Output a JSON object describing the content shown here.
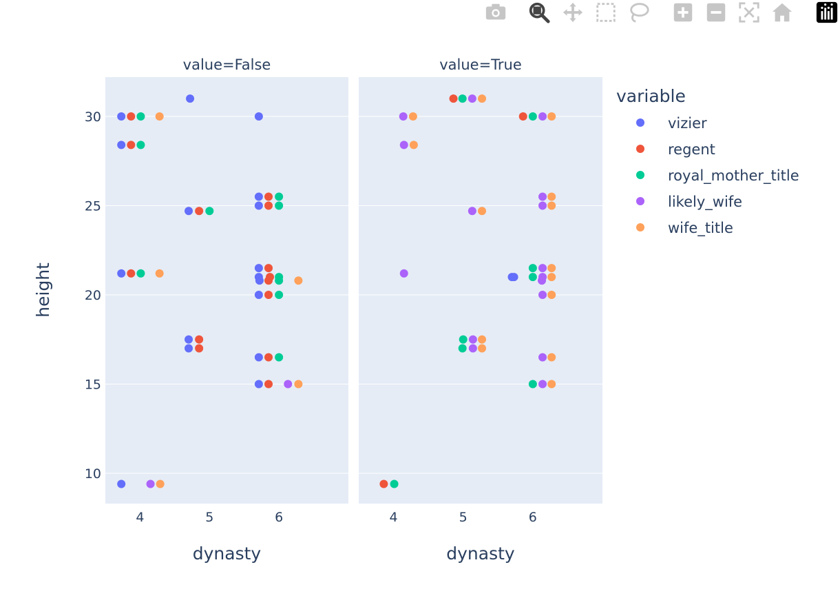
{
  "toolbar": {
    "buttons": [
      {
        "name": "camera-icon",
        "tooltip": ""
      },
      {
        "name": "zoom-icon",
        "tooltip": ""
      },
      {
        "name": "pan-icon",
        "tooltip": ""
      },
      {
        "name": "box-select-icon",
        "tooltip": ""
      },
      {
        "name": "lasso-select-icon",
        "tooltip": ""
      },
      {
        "name": "zoom-in-icon",
        "tooltip": ""
      },
      {
        "name": "zoom-out-icon",
        "tooltip": ""
      },
      {
        "name": "autoscale-icon",
        "tooltip": ""
      },
      {
        "name": "reset-axes-icon",
        "tooltip": ""
      },
      {
        "name": "plotly-logo-icon",
        "tooltip": ""
      }
    ],
    "active_color": "#444444",
    "inactive_color": "#c6c6c6"
  },
  "colors": {
    "plot_bg": "#e5ecf6",
    "grid": "#ffffff",
    "text": "#2a3f5f"
  },
  "chart_data": {
    "type": "scatter",
    "facet_by": "value",
    "facets": [
      {
        "title": "value=False",
        "xlabel": "dynasty"
      },
      {
        "title": "value=True",
        "xlabel": "dynasty"
      }
    ],
    "ylabel": "height",
    "xlim": [
      3.5,
      7.0
    ],
    "ylim": [
      8.3,
      32.2
    ],
    "xticks": [
      4,
      5,
      6
    ],
    "yticks": [
      10,
      15,
      20,
      25,
      30
    ],
    "legend": {
      "title": "variable",
      "position": "right"
    },
    "series": [
      {
        "name": "vizier",
        "color": "#636efa",
        "points": {
          "False": [
            [
              3.73,
              30
            ],
            [
              3.73,
              28.4
            ],
            [
              3.73,
              21.2
            ],
            [
              3.73,
              9.4
            ],
            [
              4.72,
              31
            ],
            [
              4.7,
              24.7
            ],
            [
              4.7,
              17.5
            ],
            [
              4.7,
              17
            ],
            [
              5.71,
              30
            ],
            [
              5.71,
              25.5
            ],
            [
              5.71,
              25
            ],
            [
              5.71,
              21.5
            ],
            [
              5.71,
              21
            ],
            [
              5.72,
              20.8
            ],
            [
              5.71,
              20
            ],
            [
              5.71,
              16.5
            ],
            [
              5.71,
              15
            ]
          ],
          "True": [
            [
              5.7,
              21
            ],
            [
              5.73,
              21
            ]
          ]
        }
      },
      {
        "name": "regent",
        "color": "#ef553b",
        "points": {
          "False": [
            [
              3.87,
              30
            ],
            [
              3.87,
              28.4
            ],
            [
              3.87,
              21.2
            ],
            [
              4.85,
              24.7
            ],
            [
              4.85,
              17.5
            ],
            [
              4.85,
              17
            ],
            [
              5.85,
              25.5
            ],
            [
              5.85,
              25
            ],
            [
              5.85,
              21.5
            ],
            [
              5.87,
              21
            ],
            [
              5.85,
              20.8
            ],
            [
              5.85,
              20
            ],
            [
              5.85,
              16.5
            ],
            [
              5.85,
              15
            ]
          ],
          "True": [
            [
              3.86,
              9.4
            ],
            [
              4.86,
              31
            ],
            [
              5.86,
              30
            ]
          ]
        }
      },
      {
        "name": "royal_mother_title",
        "color": "#00cc96",
        "points": {
          "False": [
            [
              4.01,
              30
            ],
            [
              4.01,
              28.4
            ],
            [
              4.01,
              21.2
            ],
            [
              5.0,
              24.7
            ],
            [
              6.0,
              25.5
            ],
            [
              6.0,
              25
            ],
            [
              6.0,
              21
            ],
            [
              6.0,
              20.8
            ],
            [
              6.0,
              20
            ],
            [
              6.0,
              16.5
            ]
          ],
          "True": [
            [
              4.01,
              9.4
            ],
            [
              4.99,
              31
            ],
            [
              5.0,
              17.5
            ],
            [
              4.99,
              17
            ],
            [
              6.0,
              30
            ],
            [
              6.0,
              21.5
            ],
            [
              6.0,
              21
            ],
            [
              6.0,
              15
            ]
          ]
        }
      },
      {
        "name": "likely_wife",
        "color": "#ab63fa",
        "points": {
          "False": [
            [
              4.15,
              9.4
            ],
            [
              6.13,
              15
            ]
          ],
          "True": [
            [
              4.14,
              30
            ],
            [
              4.15,
              28.4
            ],
            [
              4.15,
              21.2
            ],
            [
              5.13,
              31
            ],
            [
              5.13,
              24.7
            ],
            [
              5.14,
              17.5
            ],
            [
              5.14,
              17
            ],
            [
              6.14,
              30
            ],
            [
              6.14,
              25.5
            ],
            [
              6.14,
              25
            ],
            [
              6.14,
              21.5
            ],
            [
              6.14,
              21
            ],
            [
              6.13,
              20.8
            ],
            [
              6.14,
              20
            ],
            [
              6.14,
              16.5
            ],
            [
              6.14,
              15
            ]
          ]
        }
      },
      {
        "name": "wife_title",
        "color": "#ffa15a",
        "points": {
          "False": [
            [
              4.28,
              30
            ],
            [
              4.28,
              21.2
            ],
            [
              4.29,
              9.4
            ],
            [
              6.28,
              20.8
            ],
            [
              6.28,
              15
            ]
          ],
          "True": [
            [
              4.28,
              30
            ],
            [
              4.29,
              28.4
            ],
            [
              5.27,
              31
            ],
            [
              5.27,
              24.7
            ],
            [
              5.27,
              17.5
            ],
            [
              5.27,
              17
            ],
            [
              6.27,
              30
            ],
            [
              6.27,
              25.5
            ],
            [
              6.27,
              25
            ],
            [
              6.27,
              21.5
            ],
            [
              6.27,
              21
            ],
            [
              6.27,
              20
            ],
            [
              6.27,
              16.5
            ],
            [
              6.27,
              15
            ]
          ]
        }
      }
    ]
  }
}
